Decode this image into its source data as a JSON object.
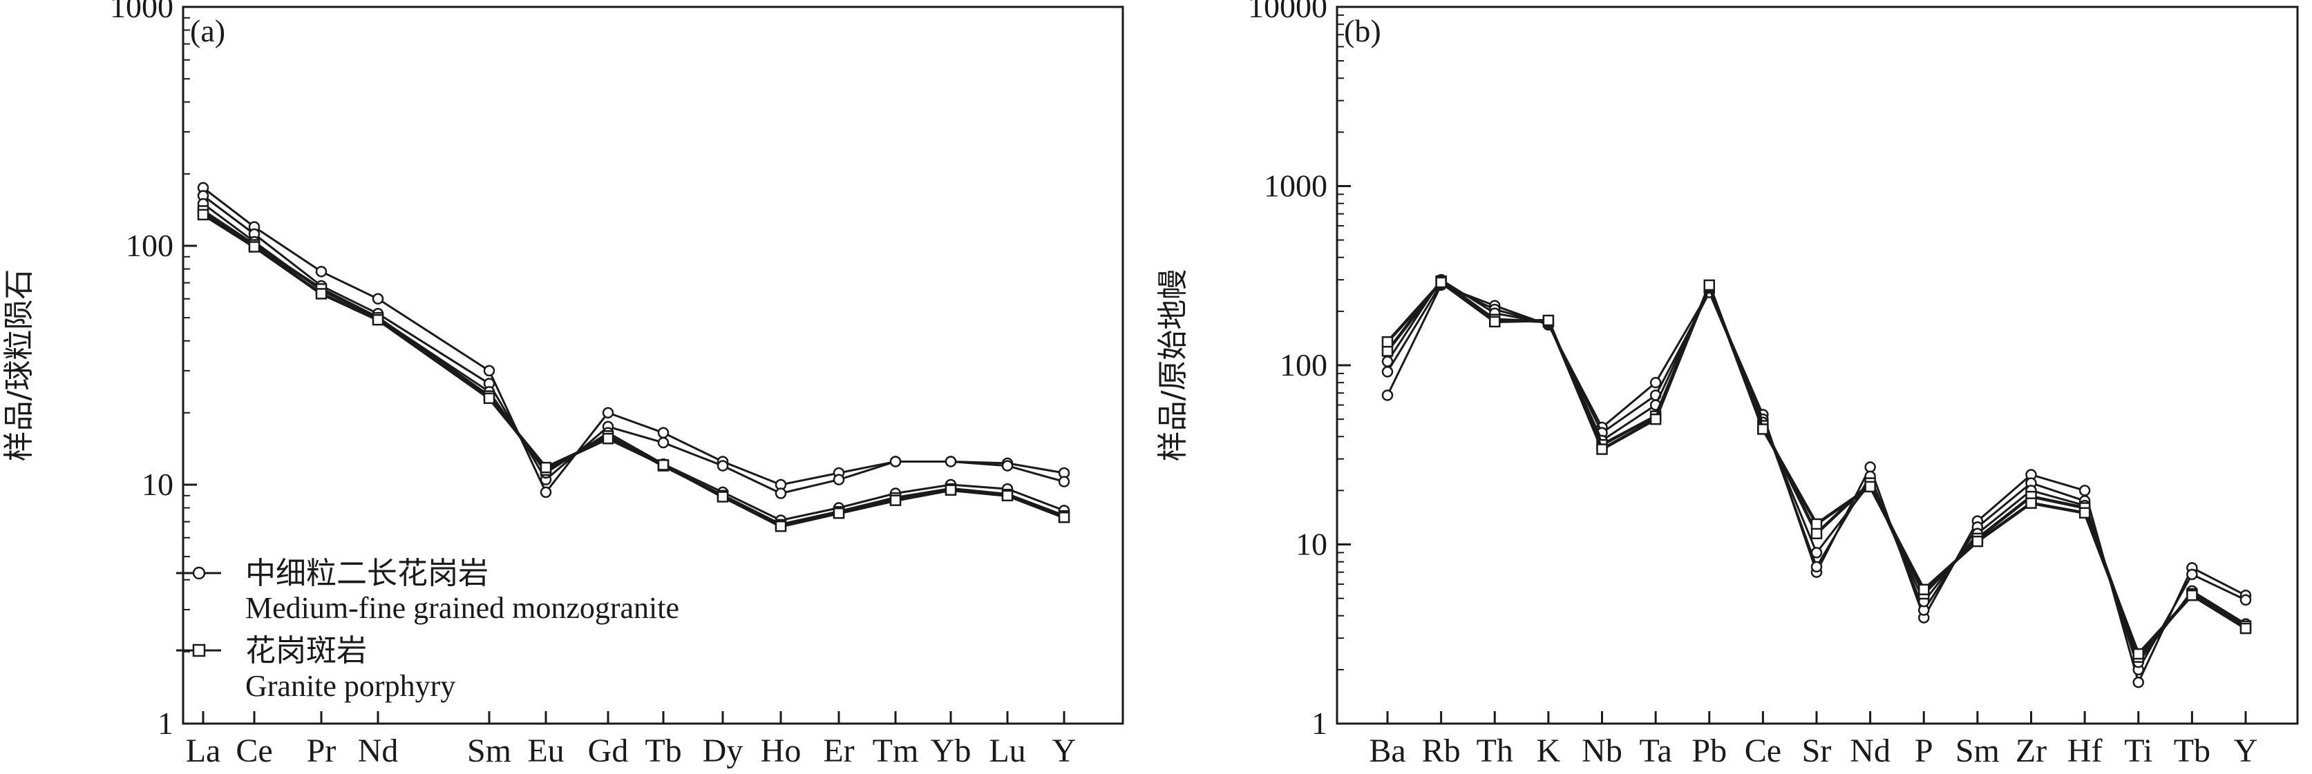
{
  "chart_data": [
    {
      "type": "line",
      "panel_label": "(a)",
      "ylabel": "样品/球粒陨石",
      "yscale": "log",
      "ylim": [
        1,
        1000
      ],
      "yticks": [
        "1",
        "10",
        "100",
        "1000"
      ],
      "categories": [
        "La",
        "Ce",
        "Pr",
        "Nd",
        "",
        "Sm",
        "Eu",
        "Gd",
        "Tb",
        "Dy",
        "Ho",
        "Er",
        "Tm",
        "Yb",
        "Lu",
        "Y"
      ],
      "legend": [
        {
          "marker": "circle",
          "label_cn": "中细粒二长花岗岩",
          "label_en": "Medium-fine grained monzogranite"
        },
        {
          "marker": "square",
          "label_cn": "花岗斑岩",
          "label_en": "Granite porphyry"
        }
      ],
      "series": [
        {
          "group": "monzogranite",
          "marker": "circle",
          "values": [
            175,
            120,
            78,
            60,
            null,
            30,
            9.3,
            20,
            16.5,
            12.5,
            10,
            11.2,
            12.5,
            12.5,
            12.3,
            11.2
          ]
        },
        {
          "group": "monzogranite",
          "marker": "circle",
          "values": [
            162,
            112,
            68,
            52,
            null,
            26.5,
            10.5,
            17.5,
            15,
            12,
            9.2,
            10.5,
            12.5,
            12.5,
            12,
            10.3
          ]
        },
        {
          "group": "monzogranite",
          "marker": "circle",
          "values": [
            150,
            104,
            65,
            50,
            null,
            24.5,
            11.2,
            16.5,
            12.2,
            9.3,
            7.1,
            8.0,
            9.2,
            10.0,
            9.6,
            7.8
          ]
        },
        {
          "group": "porphyry",
          "marker": "square",
          "values": [
            140,
            101,
            66,
            50,
            null,
            23.5,
            11.5,
            16.0,
            12.0,
            9.0,
            6.8,
            7.7,
            8.8,
            9.6,
            9.1,
            7.4
          ]
        },
        {
          "group": "porphyry",
          "marker": "square",
          "values": [
            135,
            99,
            63,
            49,
            null,
            23.0,
            11.8,
            15.6,
            12.1,
            8.9,
            6.7,
            7.6,
            8.6,
            9.5,
            9.0,
            7.3
          ]
        }
      ]
    },
    {
      "type": "line",
      "panel_label": "(b)",
      "ylabel": "样品/原始地幔",
      "yscale": "log",
      "ylim": [
        1,
        10000
      ],
      "yticks": [
        "1",
        "10",
        "100",
        "1000",
        "10000"
      ],
      "categories": [
        "Ba",
        "Rb",
        "Th",
        "K",
        "Nb",
        "Ta",
        "Pb",
        "Ce",
        "Sr",
        "Nd",
        "P",
        "Sm",
        "Zr",
        "Hf",
        "Ti",
        "Tb",
        "Y"
      ],
      "series": [
        {
          "group": "monzogranite",
          "marker": "circle",
          "values": [
            68,
            280,
            215,
            168,
            45,
            80,
            260,
            53,
            7.0,
            27,
            3.9,
            13.5,
            24.5,
            20,
            1.7,
            7.4,
            5.2
          ]
        },
        {
          "group": "monzogranite",
          "marker": "circle",
          "values": [
            92,
            285,
            205,
            170,
            42,
            68,
            255,
            50,
            7.5,
            24,
            4.3,
            12.5,
            22,
            17.5,
            2.0,
            6.8,
            4.9
          ]
        },
        {
          "group": "monzogranite",
          "marker": "circle",
          "values": [
            105,
            300,
            195,
            172,
            38,
            60,
            270,
            48,
            9.0,
            22,
            4.8,
            11.5,
            20,
            16.5,
            2.2,
            5.5,
            3.6
          ]
        },
        {
          "group": "porphyry",
          "marker": "square",
          "values": [
            120,
            295,
            180,
            175,
            36,
            52,
            275,
            46,
            11.5,
            22,
            5.3,
            10.8,
            18.5,
            16.0,
            2.35,
            5.3,
            3.5
          ]
        },
        {
          "group": "porphyry",
          "marker": "square",
          "values": [
            135,
            290,
            175,
            178,
            34,
            50,
            280,
            44,
            13.0,
            21,
            5.6,
            10.4,
            17.0,
            15.0,
            2.45,
            5.2,
            3.4
          ]
        }
      ]
    }
  ]
}
